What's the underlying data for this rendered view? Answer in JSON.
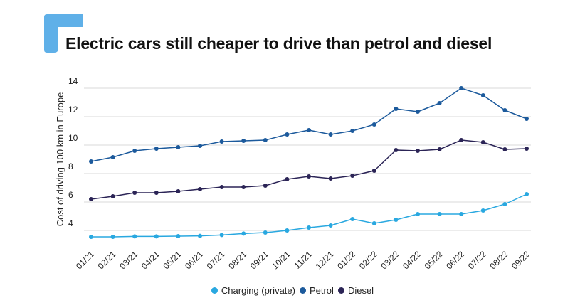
{
  "header": {
    "title": "Electric cars still cheaper to drive than petrol and diesel"
  },
  "colors": {
    "logo": "#5fb0e8",
    "grid": "#d9d9d9"
  },
  "chart_data": {
    "type": "line",
    "title": "Electric cars still cheaper to drive than petrol and diesel",
    "ylabel": "Cost of driving 100 km in Europe",
    "xlabel": "",
    "ylim": [
      3,
      14
    ],
    "yticks": [
      4,
      6,
      8,
      10,
      12,
      14
    ],
    "grid": true,
    "legend_position": "bottom",
    "categories": [
      "01/21",
      "02/21",
      "03/21",
      "04/21",
      "05/21",
      "06/21",
      "07/21",
      "08/21",
      "09/21",
      "10/21",
      "11/21",
      "12/21",
      "01/22",
      "02/22",
      "03/22",
      "04/22",
      "05/22",
      "06/22",
      "07/22",
      "08/22",
      "09/22"
    ],
    "series": [
      {
        "name": "Charging (private)",
        "color": "#29a8e0",
        "values": [
          3.55,
          3.55,
          3.58,
          3.58,
          3.6,
          3.62,
          3.68,
          3.78,
          3.85,
          4.0,
          4.2,
          4.35,
          4.8,
          4.5,
          4.75,
          5.15,
          5.15,
          5.15,
          5.4,
          5.85,
          6.55
        ]
      },
      {
        "name": "Petrol",
        "color": "#1c5a9c",
        "values": [
          8.85,
          9.15,
          9.6,
          9.75,
          9.85,
          9.95,
          10.25,
          10.3,
          10.35,
          10.75,
          11.05,
          10.75,
          11.0,
          11.45,
          12.55,
          12.35,
          12.95,
          14.0,
          13.5,
          12.45,
          11.85
        ]
      },
      {
        "name": "Diesel",
        "color": "#2b2456",
        "values": [
          6.2,
          6.4,
          6.65,
          6.65,
          6.75,
          6.9,
          7.05,
          7.05,
          7.15,
          7.6,
          7.8,
          7.65,
          7.85,
          8.2,
          9.65,
          9.6,
          9.7,
          10.35,
          10.2,
          9.7,
          9.75
        ]
      }
    ]
  }
}
